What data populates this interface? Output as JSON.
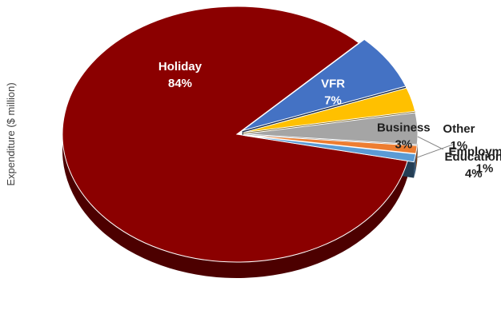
{
  "chart_data": {
    "type": "pie",
    "style": "3d-exploded",
    "title": "",
    "ylabel": "Expenditure ($ million)",
    "slices": [
      {
        "label": "Holiday",
        "value": 84,
        "display": "84%",
        "color": "#8b0000"
      },
      {
        "label": "VFR",
        "value": 7,
        "display": "7%",
        "color": "#4472c4"
      },
      {
        "label": "Business",
        "value": 3,
        "display": "3%",
        "color": "#ffc000"
      },
      {
        "label": "Education",
        "value": 4,
        "display": "4%",
        "color": "#a5a5a5"
      },
      {
        "label": "Employment",
        "value": 1,
        "display": "1%",
        "color": "#ed7d31"
      },
      {
        "label": "Other",
        "value": 1,
        "display": "1%",
        "color": "#5b9bd5"
      }
    ]
  }
}
